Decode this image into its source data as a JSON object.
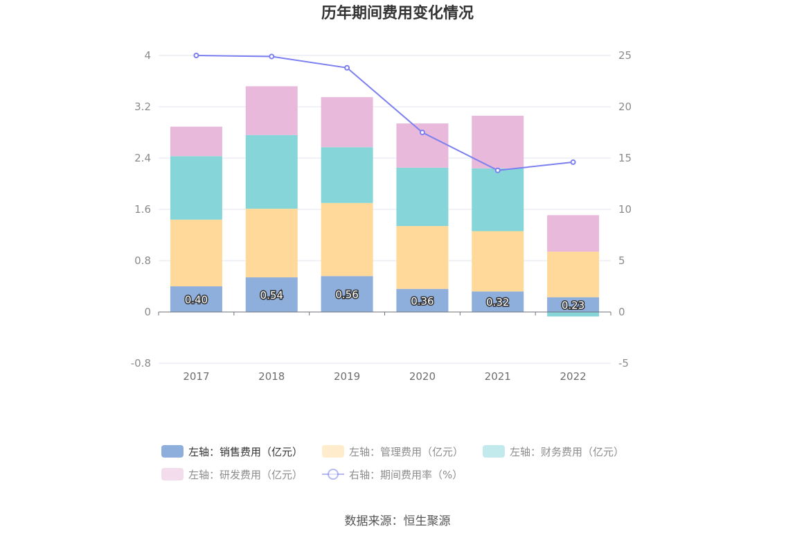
{
  "chart_data": {
    "type": "bar",
    "title": "历年期间费用变化情况",
    "categories": [
      "2017",
      "2018",
      "2019",
      "2020",
      "2021",
      "2022"
    ],
    "stacked": true,
    "y_left": {
      "ticks": [
        "-0.8",
        "0",
        "0.8",
        "1.6",
        "2.4",
        "3.2",
        "4"
      ],
      "ylim": [
        -0.8,
        4
      ]
    },
    "y_right": {
      "ticks": [
        "-5",
        "0",
        "5",
        "10",
        "15",
        "20",
        "25"
      ],
      "ylim": [
        -5,
        25
      ]
    },
    "series": [
      {
        "name": "左轴：销售费用（亿元）",
        "axis": "left",
        "type": "bar",
        "color": "#8eaedc",
        "values": [
          0.4,
          0.54,
          0.56,
          0.36,
          0.32,
          0.23
        ],
        "labels": [
          "0.40",
          "0.54",
          "0.56",
          "0.36",
          "0.32",
          "0.23"
        ]
      },
      {
        "name": "左轴：管理费用（亿元）",
        "axis": "left",
        "type": "bar",
        "color": "#ffd99a",
        "values": [
          1.04,
          1.07,
          1.14,
          0.98,
          0.94,
          0.71
        ]
      },
      {
        "name": "左轴：财务费用（亿元）",
        "axis": "left",
        "type": "bar",
        "color": "#86d6d9",
        "values": [
          0.99,
          1.15,
          0.87,
          0.91,
          0.98,
          -0.07
        ]
      },
      {
        "name": "左轴：研发费用（亿元）",
        "axis": "left",
        "type": "bar",
        "color": "#e8b9da",
        "values": [
          0.46,
          0.76,
          0.78,
          0.69,
          0.82,
          0.57
        ]
      },
      {
        "name": "右轴：期间费用率（%）",
        "axis": "right",
        "type": "line",
        "color": "#7b7ff0",
        "values": [
          25.0,
          24.9,
          23.8,
          17.5,
          13.8,
          14.6
        ]
      }
    ],
    "grid": true,
    "legend_position": "bottom"
  },
  "source": "数据来源：恒生聚源"
}
